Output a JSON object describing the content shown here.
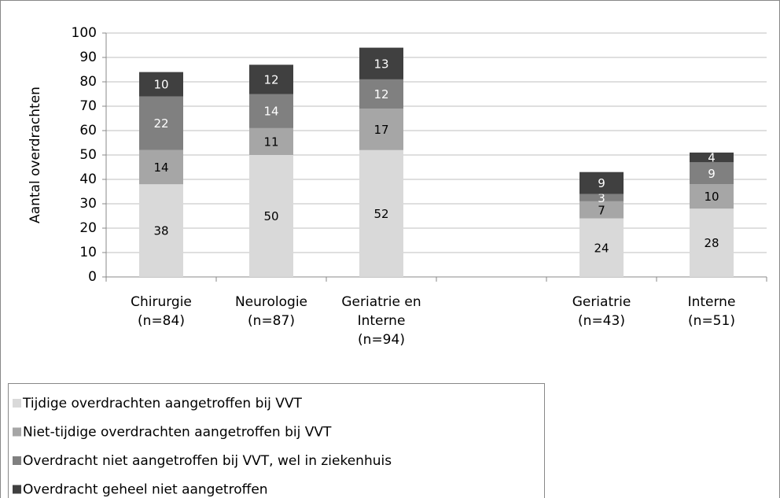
{
  "chart_data": {
    "type": "stacked_bar",
    "y_label": "Aantal overdrachten",
    "categories": [
      [
        "Chirurgie",
        "(n=84)"
      ],
      [
        "Neurologie",
        "(n=87)"
      ],
      [
        "Geriatrie en",
        "Interne",
        "(n=94)"
      ],
      null,
      [
        "Geriatrie",
        "(n=43)"
      ],
      [
        "Interne",
        "(n=51)"
      ]
    ],
    "series": [
      {
        "name": "Tijdige overdrachten aangetroffen bij VVT",
        "color": "#d9d9d9",
        "values": [
          38,
          50,
          52,
          null,
          24,
          28
        ]
      },
      {
        "name": "Niet-tijdige overdrachten aangetroffen bij VVT",
        "color": "#a6a6a6",
        "values": [
          14,
          11,
          17,
          null,
          7,
          10
        ]
      },
      {
        "name": "Overdracht niet aangetroffen bij VVT, wel in ziekenhuis",
        "color": "#808080",
        "values": [
          22,
          14,
          12,
          null,
          3,
          9
        ]
      },
      {
        "name": "Overdracht geheel niet aangetroffen",
        "color": "#404040",
        "values": [
          10,
          12,
          13,
          null,
          9,
          4
        ]
      }
    ],
    "ylim": [
      0,
      100
    ],
    "yticks": [
      0,
      10,
      20,
      30,
      40,
      50,
      60,
      70,
      80,
      90,
      100
    ],
    "grid": true,
    "legend": "bottom-left"
  }
}
